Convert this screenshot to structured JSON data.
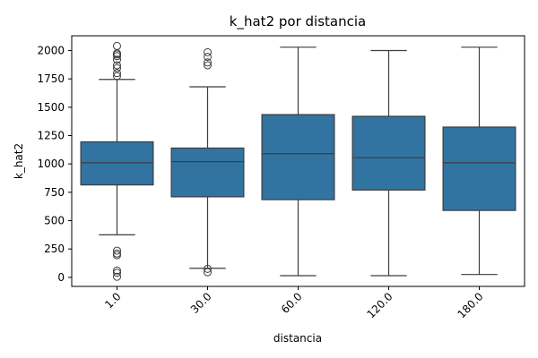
{
  "chart_data": {
    "type": "box",
    "title": "k_hat2 por distancia",
    "xlabel": "distancia",
    "ylabel": "k_hat2",
    "ylim": [
      -80,
      2130
    ],
    "yticks": [
      "0",
      "250",
      "500",
      "750",
      "1000",
      "1250",
      "1500",
      "1750",
      "2000"
    ],
    "categories": [
      "1.0",
      "30.0",
      "60.0",
      "120.0",
      "180.0"
    ],
    "box_color": "#3274a1",
    "line_color": "#3d3d3d",
    "grid": false,
    "boxes": [
      {
        "category": "1.0",
        "whisker_low": 375,
        "q1": 815,
        "median": 1010,
        "q3": 1195,
        "whisker_high": 1745,
        "outliers": [
          2040,
          1975,
          1965,
          1950,
          1920,
          1870,
          1845,
          1800,
          1775,
          235,
          210,
          195,
          60,
          40,
          5
        ]
      },
      {
        "category": "30.0",
        "whisker_low": 80,
        "q1": 710,
        "median": 1020,
        "q3": 1140,
        "whisker_high": 1680,
        "outliers": [
          1985,
          1945,
          1895,
          1870,
          75,
          45
        ]
      },
      {
        "category": "60.0",
        "whisker_low": 15,
        "q1": 685,
        "median": 1090,
        "q3": 1435,
        "whisker_high": 2030,
        "outliers": []
      },
      {
        "category": "120.0",
        "whisker_low": 15,
        "q1": 770,
        "median": 1055,
        "q3": 1420,
        "whisker_high": 2000,
        "outliers": []
      },
      {
        "category": "180.0",
        "whisker_low": 25,
        "q1": 590,
        "median": 1010,
        "q3": 1325,
        "whisker_high": 2030,
        "outliers": []
      }
    ]
  }
}
